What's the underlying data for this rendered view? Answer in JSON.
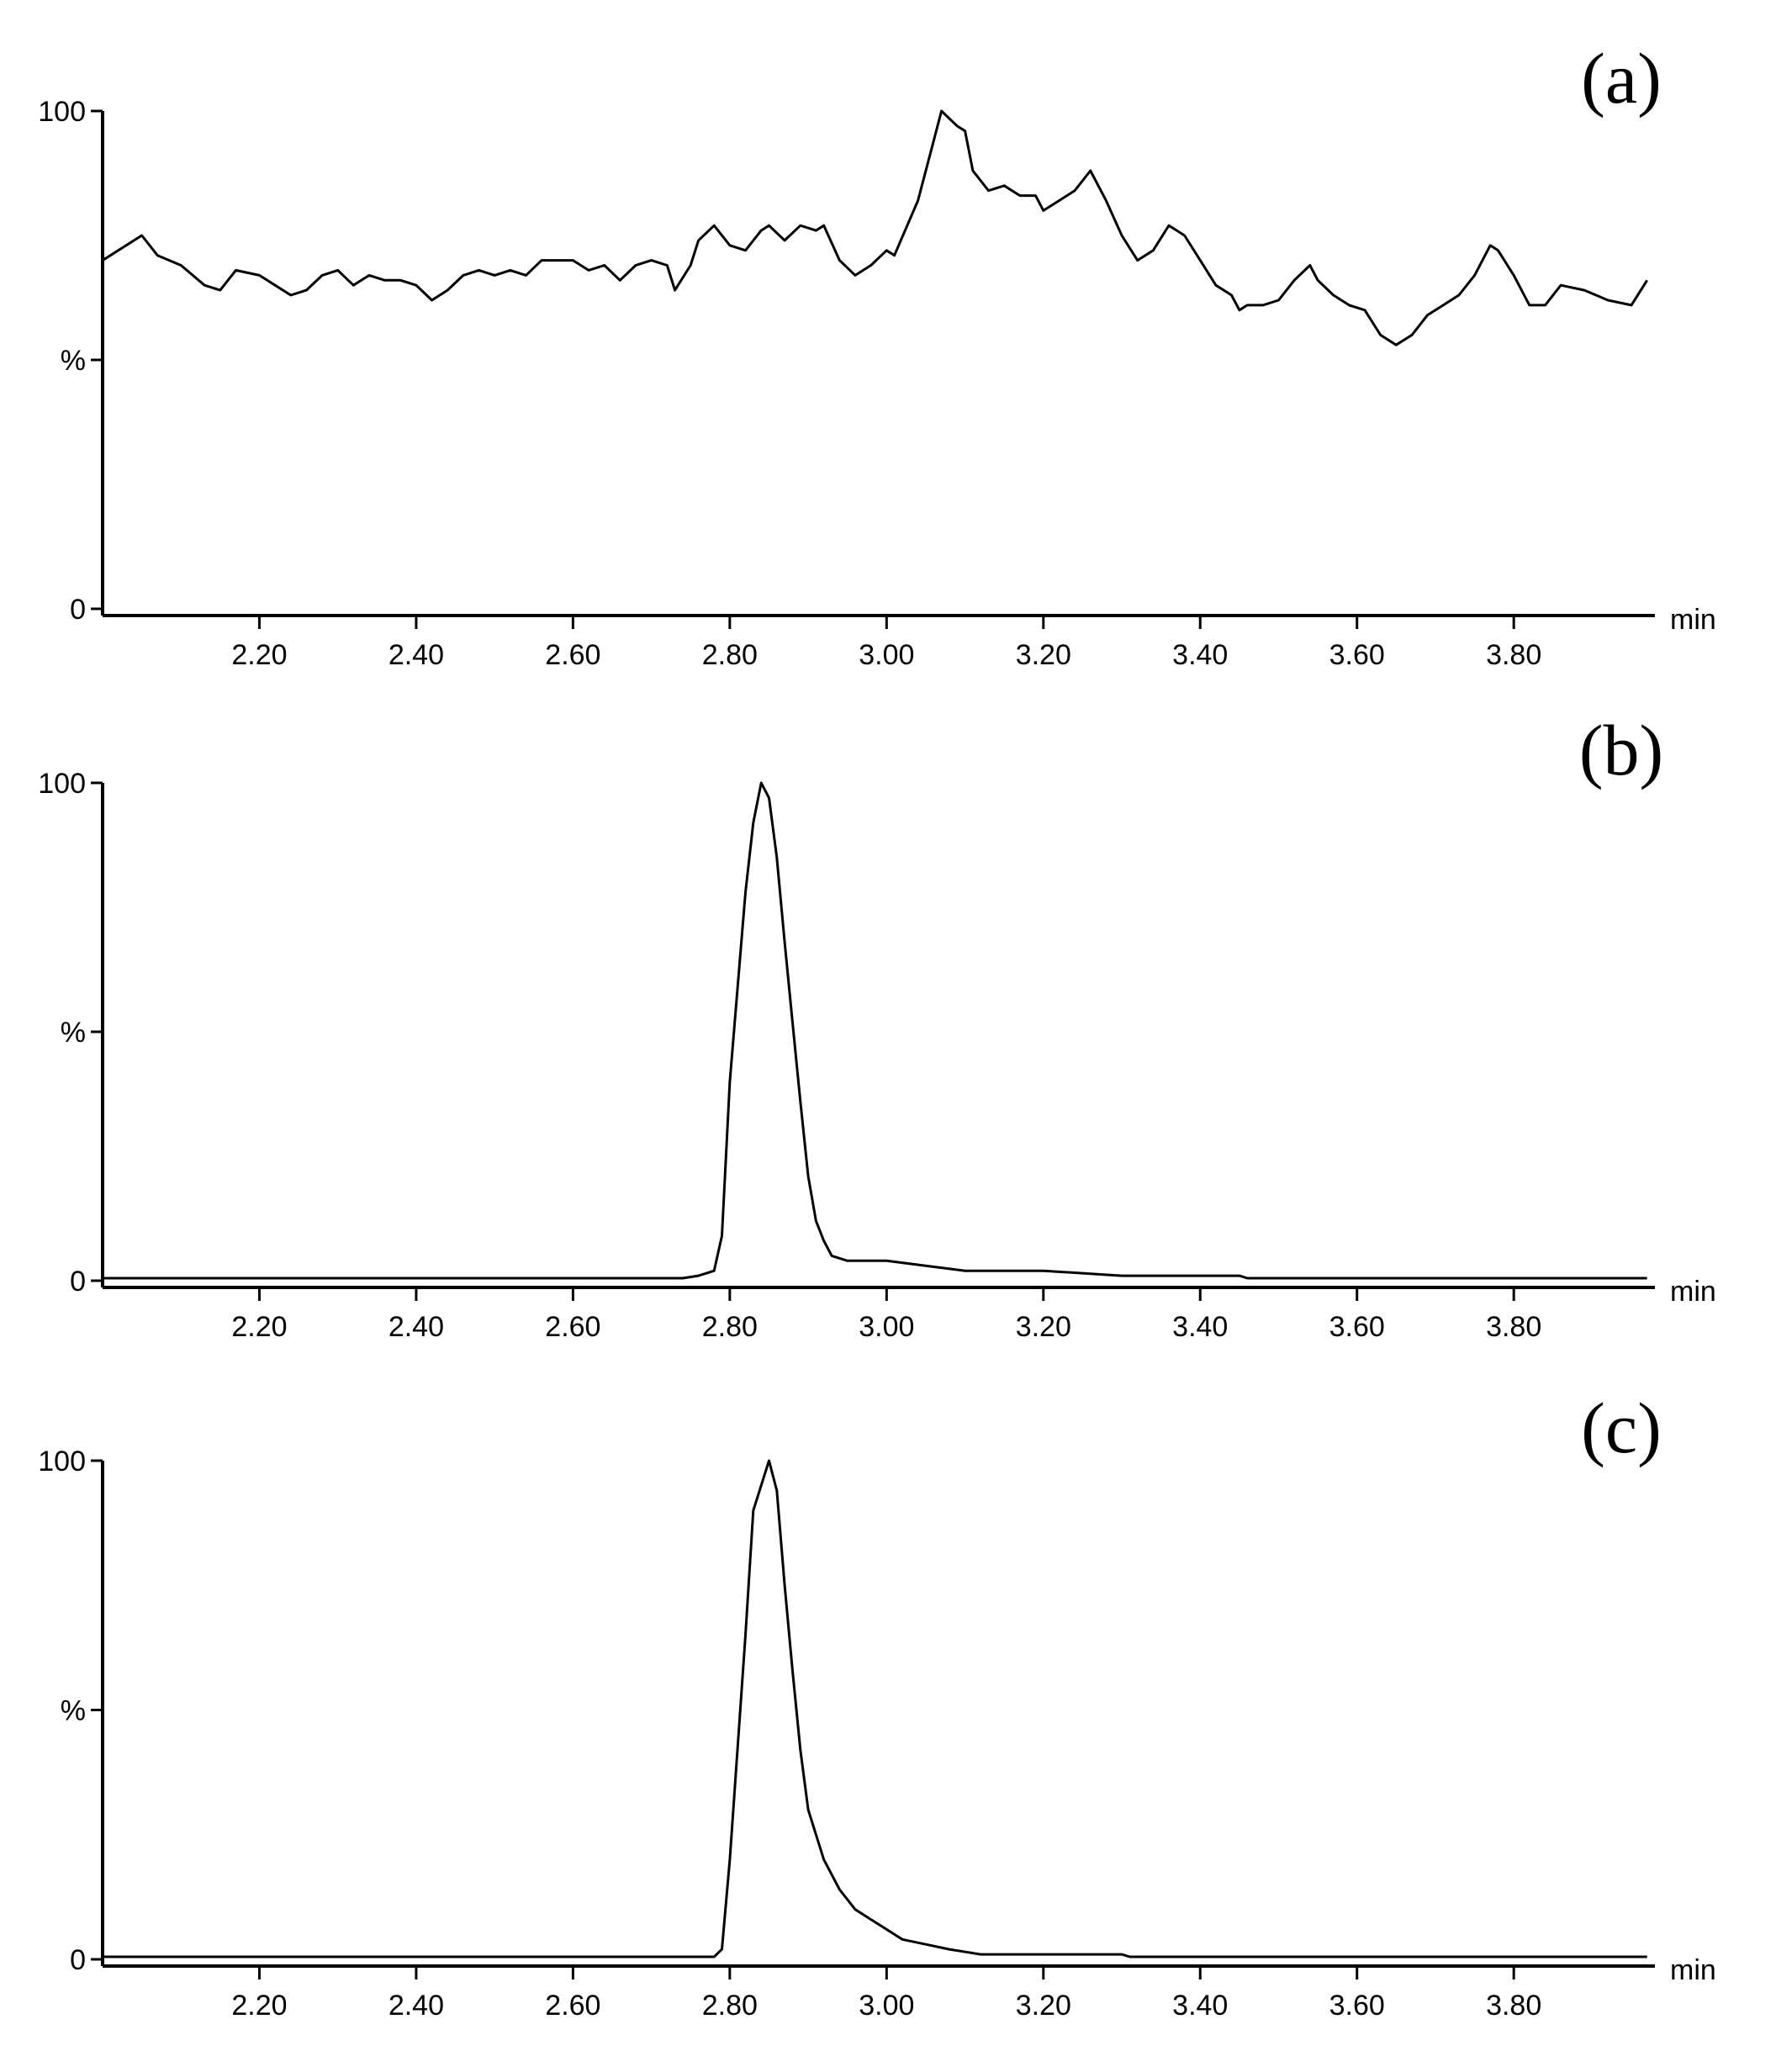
{
  "chart_data": [
    {
      "type": "line",
      "title": "(a)",
      "x_label": "min",
      "color": "#000000",
      "xlim": [
        2.0,
        3.98
      ],
      "ylim": [
        0,
        100
      ],
      "xticks": [
        {
          "value": 2.2,
          "label": "2.20"
        },
        {
          "value": 2.4,
          "label": "2.40"
        },
        {
          "value": 2.6,
          "label": "2.60"
        },
        {
          "value": 2.8,
          "label": "2.80"
        },
        {
          "value": 3.0,
          "label": "3.00"
        },
        {
          "value": 3.2,
          "label": "3.20"
        },
        {
          "value": 3.4,
          "label": "3.40"
        },
        {
          "value": 3.6,
          "label": "3.60"
        },
        {
          "value": 3.8,
          "label": "3.80"
        }
      ],
      "yticks": [
        0,
        {
          "value": 50,
          "label": "%"
        },
        100
      ],
      "x": [
        2.0,
        2.05,
        2.07,
        2.1,
        2.13,
        2.15,
        2.17,
        2.2,
        2.22,
        2.24,
        2.26,
        2.28,
        2.3,
        2.32,
        2.34,
        2.36,
        2.38,
        2.4,
        2.42,
        2.44,
        2.46,
        2.48,
        2.5,
        2.52,
        2.54,
        2.56,
        2.58,
        2.6,
        2.62,
        2.64,
        2.66,
        2.68,
        2.7,
        2.72,
        2.73,
        2.75,
        2.76,
        2.78,
        2.8,
        2.82,
        2.84,
        2.85,
        2.87,
        2.89,
        2.91,
        2.92,
        2.94,
        2.96,
        2.98,
        3.0,
        3.01,
        3.04,
        3.06,
        3.07,
        3.09,
        3.1,
        3.11,
        3.13,
        3.15,
        3.17,
        3.19,
        3.2,
        3.22,
        3.24,
        3.26,
        3.28,
        3.3,
        3.32,
        3.34,
        3.36,
        3.38,
        3.4,
        3.42,
        3.44,
        3.45,
        3.46,
        3.48,
        3.5,
        3.52,
        3.54,
        3.55,
        3.57,
        3.59,
        3.61,
        3.63,
        3.65,
        3.67,
        3.69,
        3.71,
        3.73,
        3.75,
        3.77,
        3.78,
        3.8,
        3.82,
        3.84,
        3.86,
        3.89,
        3.92,
        3.95,
        3.97
      ],
      "values": [
        70,
        75,
        71,
        69,
        65,
        64,
        68,
        67,
        65,
        63,
        64,
        67,
        68,
        65,
        67,
        66,
        66,
        65,
        62,
        64,
        67,
        68,
        67,
        68,
        67,
        70,
        70,
        70,
        68,
        69,
        66,
        69,
        70,
        69,
        64,
        69,
        74,
        77,
        73,
        72,
        76,
        77,
        74,
        77,
        76,
        77,
        70,
        67,
        69,
        72,
        71,
        82,
        94,
        100,
        97,
        96,
        88,
        84,
        85,
        83,
        83,
        80,
        82,
        84,
        88,
        82,
        75,
        70,
        72,
        77,
        75,
        70,
        65,
        63,
        60,
        61,
        61,
        62,
        66,
        69,
        66,
        63,
        61,
        60,
        55,
        53,
        55,
        59,
        61,
        63,
        67,
        73,
        72,
        67,
        61,
        61,
        65,
        64,
        62,
        61,
        66
      ]
    },
    {
      "type": "line",
      "title": "(b)",
      "x_label": "min",
      "color": "#000000",
      "xlim": [
        2.0,
        3.98
      ],
      "ylim": [
        0,
        100
      ],
      "xticks": [
        {
          "value": 2.2,
          "label": "2.20"
        },
        {
          "value": 2.4,
          "label": "2.40"
        },
        {
          "value": 2.6,
          "label": "2.60"
        },
        {
          "value": 2.8,
          "label": "2.80"
        },
        {
          "value": 3.0,
          "label": "3.00"
        },
        {
          "value": 3.2,
          "label": "3.20"
        },
        {
          "value": 3.4,
          "label": "3.40"
        },
        {
          "value": 3.6,
          "label": "3.60"
        },
        {
          "value": 3.8,
          "label": "3.80"
        }
      ],
      "yticks": [
        0,
        {
          "value": 50,
          "label": "%"
        },
        100
      ],
      "x": [
        2.0,
        2.74,
        2.76,
        2.78,
        2.79,
        2.8,
        2.82,
        2.83,
        2.84,
        2.85,
        2.86,
        2.87,
        2.88,
        2.89,
        2.9,
        2.91,
        2.92,
        2.93,
        2.95,
        3.0,
        3.05,
        3.1,
        3.2,
        3.3,
        3.45,
        3.46,
        3.97
      ],
      "values": [
        0.5,
        0.5,
        1,
        2,
        9,
        40,
        78,
        92,
        100,
        97,
        85,
        68,
        52,
        36,
        21,
        12,
        8,
        5,
        4,
        4,
        3,
        2,
        2,
        1,
        1,
        0.5,
        0.5
      ]
    },
    {
      "type": "line",
      "title": "(c)",
      "x_label": "min",
      "color": "#000000",
      "xlim": [
        2.0,
        3.98
      ],
      "ylim": [
        0,
        100
      ],
      "xticks": [
        {
          "value": 2.2,
          "label": "2.20"
        },
        {
          "value": 2.4,
          "label": "2.40"
        },
        {
          "value": 2.6,
          "label": "2.60"
        },
        {
          "value": 2.8,
          "label": "2.80"
        },
        {
          "value": 3.0,
          "label": "3.00"
        },
        {
          "value": 3.2,
          "label": "3.20"
        },
        {
          "value": 3.4,
          "label": "3.40"
        },
        {
          "value": 3.6,
          "label": "3.60"
        },
        {
          "value": 3.8,
          "label": "3.80"
        }
      ],
      "yticks": [
        0,
        {
          "value": 50,
          "label": "%"
        },
        100
      ],
      "x": [
        2.0,
        2.78,
        2.79,
        2.8,
        2.82,
        2.83,
        2.85,
        2.86,
        2.87,
        2.88,
        2.89,
        2.9,
        2.92,
        2.94,
        2.96,
        2.98,
        3.0,
        3.02,
        3.05,
        3.08,
        3.12,
        3.3,
        3.31,
        3.97
      ],
      "values": [
        0.5,
        0.5,
        2,
        20,
        65,
        90,
        100,
        94,
        75,
        58,
        42,
        30,
        20,
        14,
        10,
        8,
        6,
        4,
        3,
        2,
        1,
        1,
        0.5,
        0.5
      ]
    }
  ]
}
